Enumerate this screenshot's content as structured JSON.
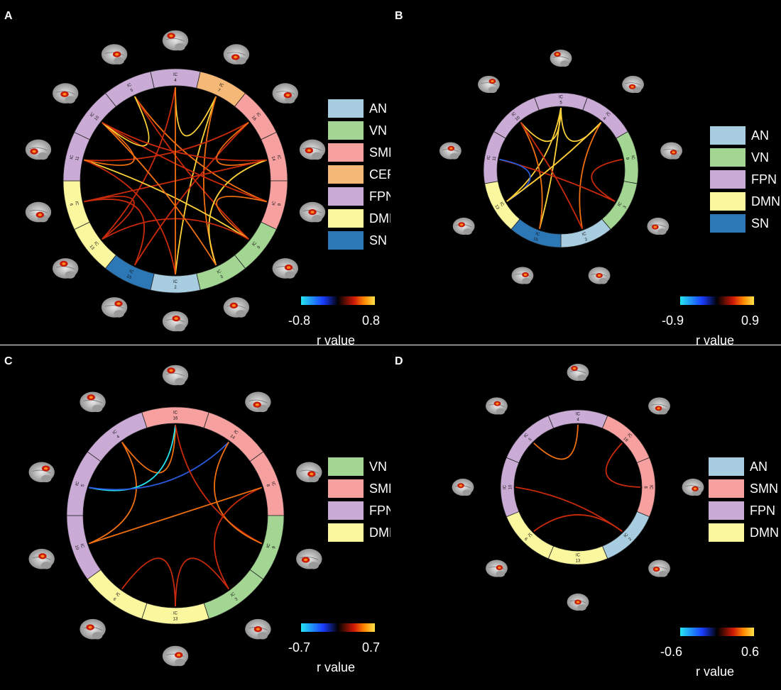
{
  "colors": {
    "AN": "#a8cde0",
    "VN": "#a3d593",
    "SMN": "#f6a1a0",
    "CER": "#f6b877",
    "FPN": "#c9abd6",
    "DMN": "#faf79e",
    "SN": "#2c77b6",
    "background": "#000000",
    "positive_strong": "#ffd23a",
    "positive_mid": "#f07010",
    "positive_weak": "#c82a0a",
    "negative_strong": "#25e5f0",
    "negative_mid": "#2a5adc"
  },
  "ring_label_prefix": "IC",
  "panels": [
    {
      "label": "A",
      "segments": [
        {
          "ic": "4",
          "net": "FPN"
        },
        {
          "ic": "7",
          "net": "CER"
        },
        {
          "ic": "16",
          "net": "SMN"
        },
        {
          "ic": "14",
          "net": "SMN"
        },
        {
          "ic": "8",
          "net": "SMN"
        },
        {
          "ic": "9",
          "net": "VN"
        },
        {
          "ic": "3",
          "net": "VN"
        },
        {
          "ic": "2",
          "net": "AN"
        },
        {
          "ic": "15",
          "net": "SN"
        },
        {
          "ic": "13",
          "net": "DMN"
        },
        {
          "ic": "6",
          "net": "DMN"
        },
        {
          "ic": "11",
          "net": "FPN"
        },
        {
          "ic": "10",
          "net": "FPN"
        },
        {
          "ic": "5",
          "net": "FPN"
        }
      ],
      "connections": [
        {
          "from": "5",
          "to": "8",
          "r": 0.6
        },
        {
          "from": "5",
          "to": "9",
          "r": 0.45
        },
        {
          "from": "4",
          "to": "7",
          "r": 0.75
        },
        {
          "from": "4",
          "to": "13",
          "r": 0.5
        },
        {
          "from": "7",
          "to": "2",
          "r": 0.7
        },
        {
          "from": "7",
          "to": "3",
          "r": 0.55
        },
        {
          "from": "16",
          "to": "11",
          "r": 0.45
        },
        {
          "from": "16",
          "to": "15",
          "r": 0.5
        },
        {
          "from": "16",
          "to": "14",
          "r": 0.6
        },
        {
          "from": "14",
          "to": "6",
          "r": 0.5
        },
        {
          "from": "14",
          "to": "3",
          "r": 0.75
        },
        {
          "from": "8",
          "to": "10",
          "r": 0.5
        },
        {
          "from": "8",
          "to": "9",
          "r": 0.55
        },
        {
          "from": "9",
          "to": "11",
          "r": 0.7
        },
        {
          "from": "9",
          "to": "13",
          "r": 0.45
        },
        {
          "from": "3",
          "to": "10",
          "r": 0.55
        },
        {
          "from": "2",
          "to": "11",
          "r": 0.5
        },
        {
          "from": "15",
          "to": "6",
          "r": 0.45
        },
        {
          "from": "13",
          "to": "6",
          "r": 0.5
        },
        {
          "from": "11",
          "to": "10",
          "r": 0.65
        },
        {
          "from": "5",
          "to": "10",
          "r": 0.7
        },
        {
          "from": "10",
          "to": "14",
          "r": 0.5
        },
        {
          "from": "4",
          "to": "2",
          "r": 0.55
        }
      ],
      "legend": [
        "AN",
        "VN",
        "SMN",
        "CER",
        "FPN",
        "DMN",
        "SN"
      ],
      "colorbar": {
        "min": "-0.8",
        "max": "0.8",
        "title": "r value"
      }
    },
    {
      "label": "B",
      "segments": [
        {
          "ic": "5",
          "net": "FPN"
        },
        {
          "ic": "4",
          "net": "FPN"
        },
        {
          "ic": "9",
          "net": "VN"
        },
        {
          "ic": "3",
          "net": "VN"
        },
        {
          "ic": "2",
          "net": "AN"
        },
        {
          "ic": "15",
          "net": "SN"
        },
        {
          "ic": "13",
          "net": "DMN"
        },
        {
          "ic": "11",
          "net": "FPN"
        },
        {
          "ic": "10",
          "net": "FPN"
        }
      ],
      "connections": [
        {
          "from": "5",
          "to": "13",
          "r": 0.8
        },
        {
          "from": "5",
          "to": "15",
          "r": 0.7
        },
        {
          "from": "5",
          "to": "4",
          "r": 0.85
        },
        {
          "from": "5",
          "to": "10",
          "r": 0.75
        },
        {
          "from": "4",
          "to": "13",
          "r": 0.6
        },
        {
          "from": "4",
          "to": "2",
          "r": 0.55
        },
        {
          "from": "10",
          "to": "15",
          "r": 0.6
        },
        {
          "from": "10",
          "to": "2",
          "r": 0.5
        },
        {
          "from": "11",
          "to": "3",
          "r": 0.45
        },
        {
          "from": "11",
          "to": "13",
          "r": -0.7
        },
        {
          "from": "9",
          "to": "3",
          "r": 0.5
        },
        {
          "from": "13",
          "to": "4",
          "r": 0.75
        }
      ],
      "legend": [
        "AN",
        "VN",
        "FPN",
        "DMN",
        "SN"
      ],
      "colorbar": {
        "min": "-0.9",
        "max": "0.9",
        "title": "r value"
      }
    },
    {
      "label": "C",
      "segments": [
        {
          "ic": "16",
          "net": "SMN"
        },
        {
          "ic": "14",
          "net": "SMN"
        },
        {
          "ic": "8",
          "net": "SMN"
        },
        {
          "ic": "9",
          "net": "VN"
        },
        {
          "ic": "3",
          "net": "VN"
        },
        {
          "ic": "13",
          "net": "DMN"
        },
        {
          "ic": "6",
          "net": "DMN"
        },
        {
          "ic": "10",
          "net": "FPN"
        },
        {
          "ic": "5",
          "net": "FPN"
        },
        {
          "ic": "4",
          "net": "FPN"
        }
      ],
      "connections": [
        {
          "from": "4",
          "to": "10",
          "r": 0.65
        },
        {
          "from": "4",
          "to": "16",
          "r": 0.6
        },
        {
          "from": "5",
          "to": "16",
          "r": -0.55
        },
        {
          "from": "5",
          "to": "14",
          "r": -0.65
        },
        {
          "from": "16",
          "to": "9",
          "r": 0.5
        },
        {
          "from": "14",
          "to": "9",
          "r": 0.55
        },
        {
          "from": "8",
          "to": "3",
          "r": 0.5
        },
        {
          "from": "3",
          "to": "13",
          "r": 0.5
        },
        {
          "from": "6",
          "to": "13",
          "r": 0.45
        },
        {
          "from": "10",
          "to": "8",
          "r": 0.55
        }
      ],
      "legend": [
        "VN",
        "SMN",
        "FPN",
        "DMN"
      ],
      "colorbar": {
        "min": "-0.7",
        "max": "0.7",
        "title": "r value"
      }
    },
    {
      "label": "D",
      "segments": [
        {
          "ic": "4",
          "net": "FPN"
        },
        {
          "ic": "16",
          "net": "SMN"
        },
        {
          "ic": "8",
          "net": "SMN"
        },
        {
          "ic": "2",
          "net": "AN"
        },
        {
          "ic": "13",
          "net": "DMN"
        },
        {
          "ic": "6",
          "net": "DMN"
        },
        {
          "ic": "10",
          "net": "FPN"
        },
        {
          "ic": "5",
          "net": "FPN"
        }
      ],
      "connections": [
        {
          "from": "5",
          "to": "4",
          "r": 0.55
        },
        {
          "from": "16",
          "to": "8",
          "r": 0.5
        },
        {
          "from": "10",
          "to": "2",
          "r": 0.5
        },
        {
          "from": "6",
          "to": "2",
          "r": 0.45
        }
      ],
      "legend": [
        "AN",
        "SMN",
        "FPN",
        "DMN"
      ],
      "colorbar": {
        "min": "-0.6",
        "max": "0.6",
        "title": "r value"
      }
    }
  ]
}
